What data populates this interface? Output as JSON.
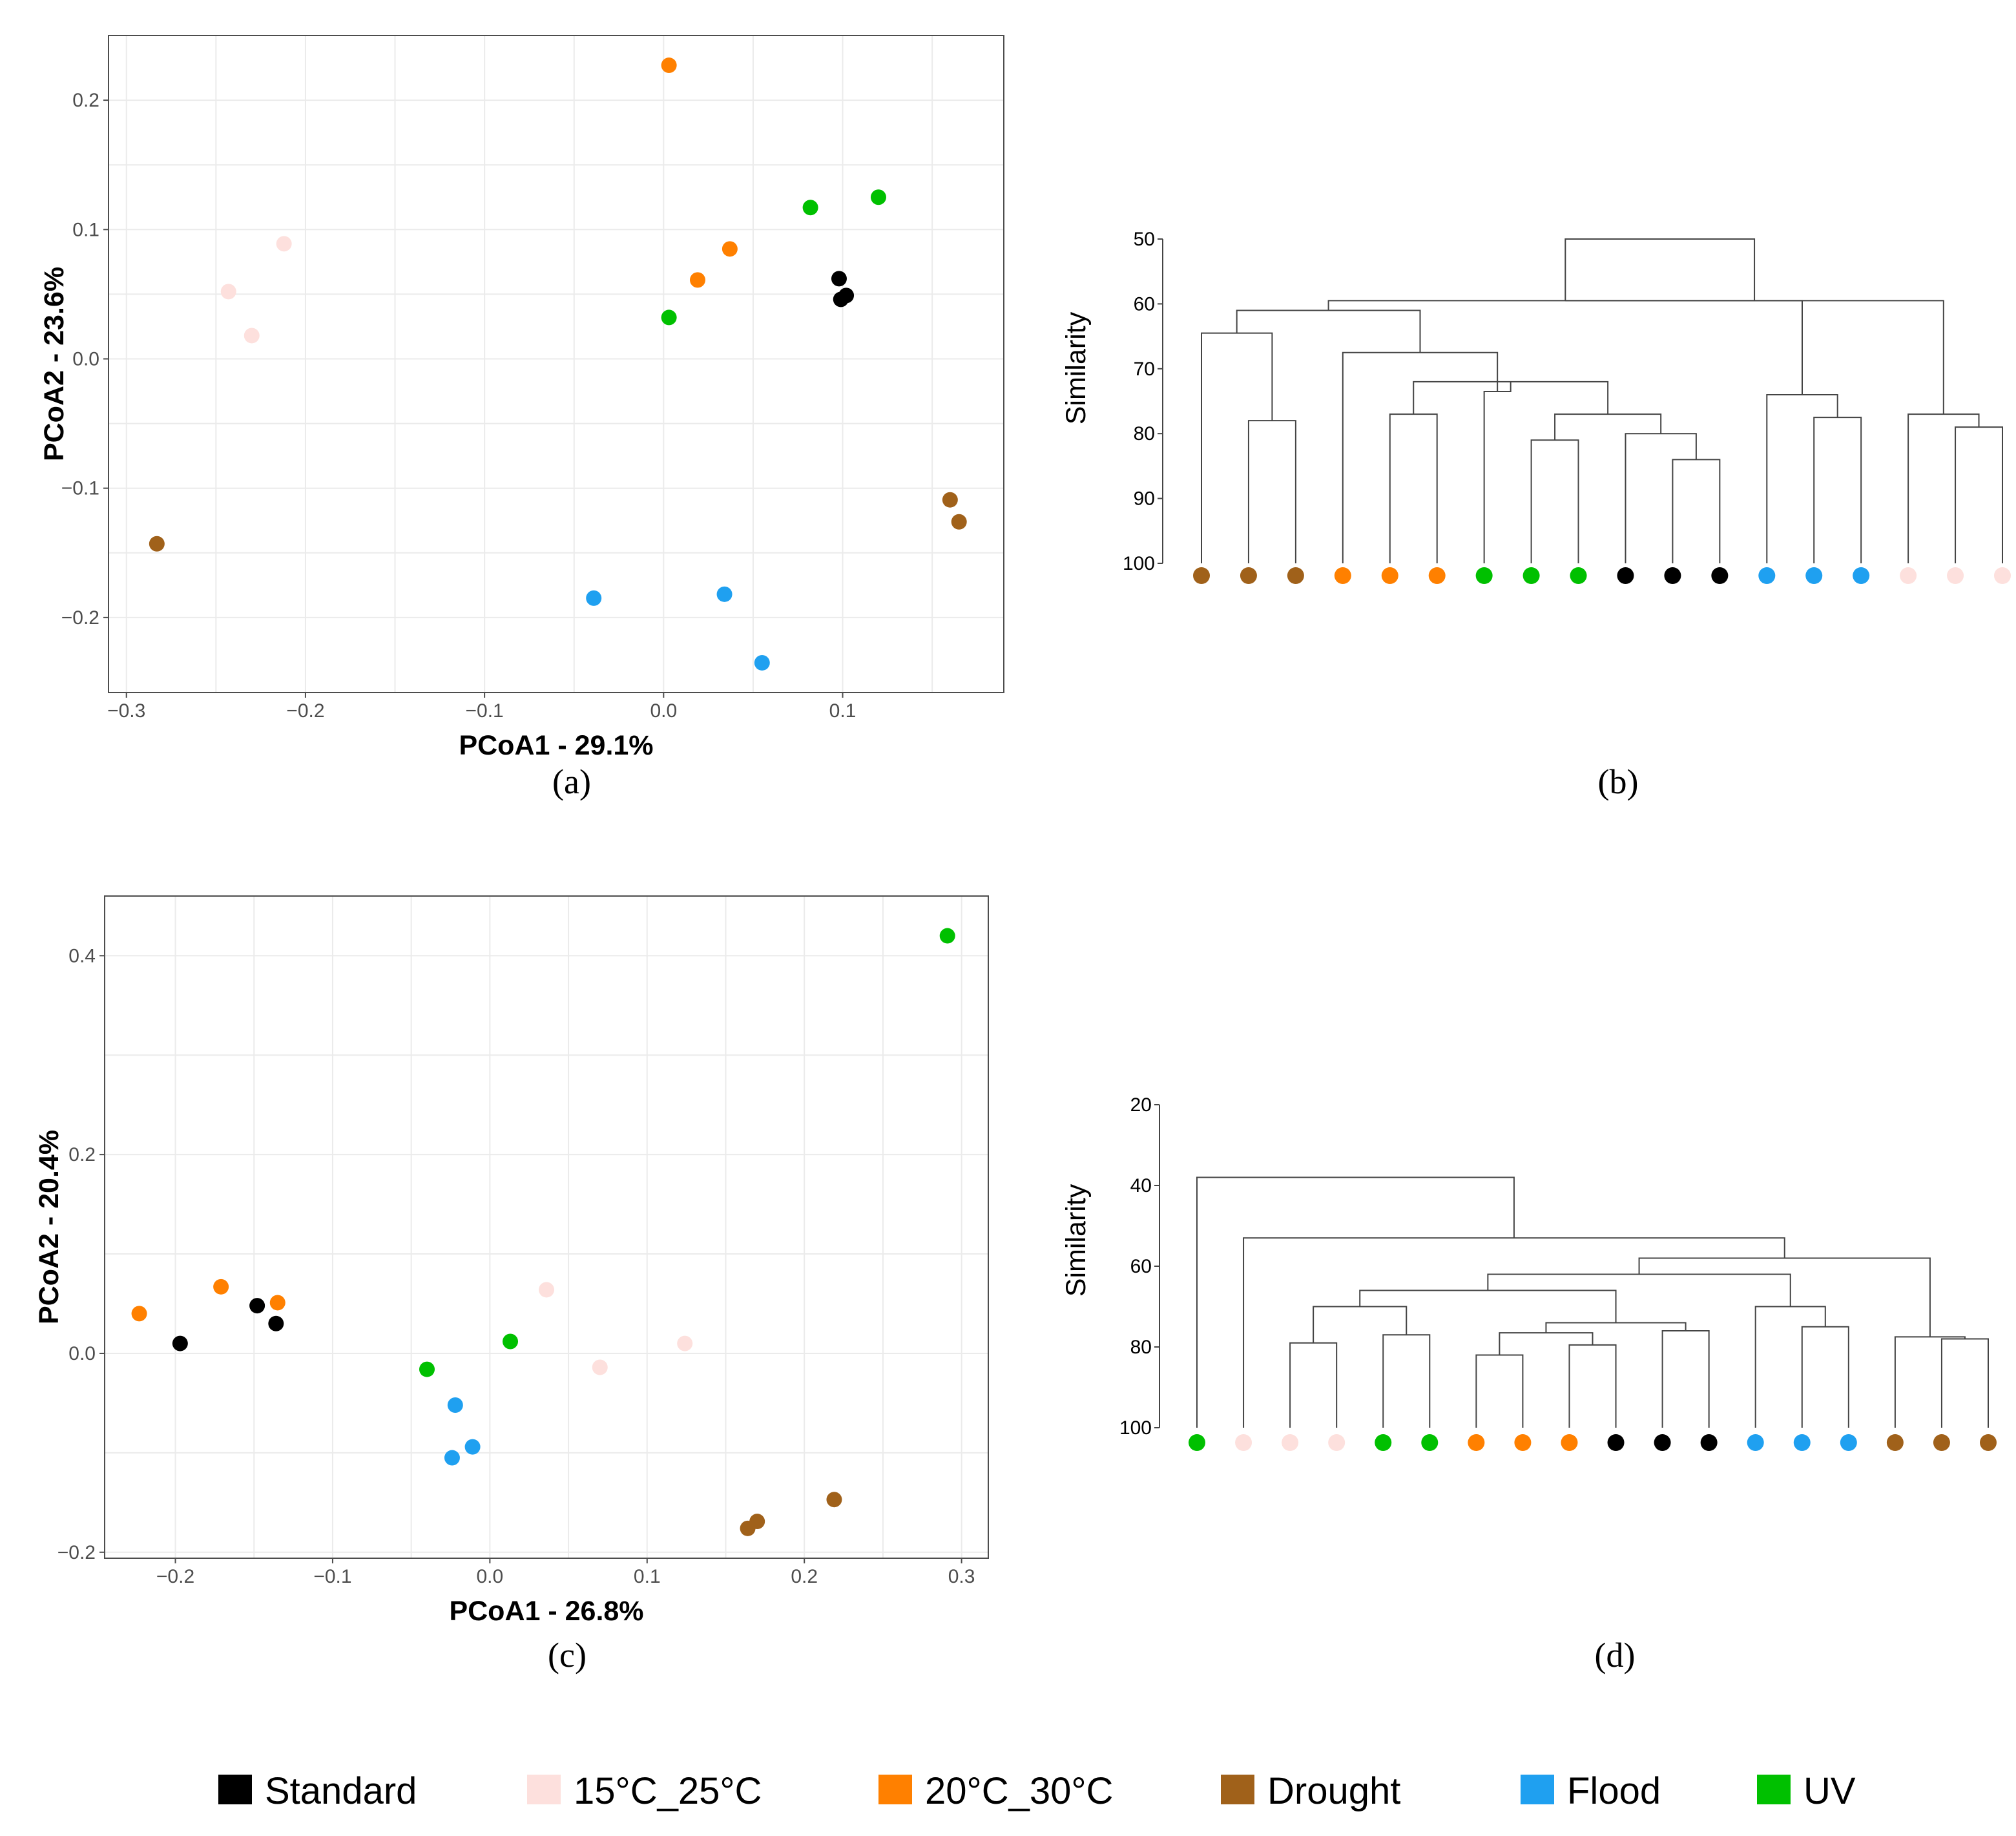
{
  "colors": {
    "Standard": "#000000",
    "15°C_25°C": "#fde0dd",
    "20°C_30°C": "#ff8000",
    "Drought": "#a0611a",
    "Flood": "#1fa0f0",
    "UV": "#00c000"
  },
  "legend": {
    "items": [
      {
        "label": "Standard",
        "group": "Standard"
      },
      {
        "label": "15°C_25°C",
        "group": "15°C_25°C"
      },
      {
        "label": "20°C_30°C",
        "group": "20°C_30°C"
      },
      {
        "label": "Drought",
        "group": "Drought"
      },
      {
        "label": "Flood",
        "group": "Flood"
      },
      {
        "label": "UV",
        "group": "UV"
      }
    ]
  },
  "panels": {
    "a": "(a)",
    "b": "(b)",
    "c": "(c)",
    "d": "(d)"
  },
  "chart_data": [
    {
      "id": "a",
      "type": "scatter",
      "title": "",
      "xlabel": "PCoA1 - 29.1%",
      "ylabel": "PCoA2 - 23.6%",
      "xlim": [
        -0.31,
        0.19
      ],
      "ylim": [
        -0.258,
        0.25
      ],
      "xticks": [
        -0.3,
        -0.2,
        -0.1,
        0.0,
        0.1
      ],
      "xtick_labels": [
        "−0.3",
        "−0.2",
        "−0.1",
        "0.0",
        "0.1"
      ],
      "yticks": [
        -0.2,
        -0.1,
        0.0,
        0.1,
        0.2
      ],
      "ytick_labels": [
        "−0.2",
        "−0.1",
        "0.0",
        "0.1",
        "0.2"
      ],
      "series": [
        {
          "name": "Standard",
          "points": [
            [
              0.098,
              0.062
            ],
            [
              0.102,
              0.049
            ],
            [
              0.099,
              0.046
            ]
          ]
        },
        {
          "name": "15°C_25°C",
          "points": [
            [
              -0.212,
              0.089
            ],
            [
              -0.243,
              0.052
            ],
            [
              -0.23,
              0.018
            ]
          ]
        },
        {
          "name": "20°C_30°C",
          "points": [
            [
              0.003,
              0.227
            ],
            [
              0.037,
              0.085
            ],
            [
              0.019,
              0.061
            ]
          ]
        },
        {
          "name": "Drought",
          "points": [
            [
              -0.283,
              -0.143
            ],
            [
              0.16,
              -0.109
            ],
            [
              0.165,
              -0.126
            ]
          ]
        },
        {
          "name": "Flood",
          "points": [
            [
              -0.039,
              -0.185
            ],
            [
              0.034,
              -0.182
            ],
            [
              0.055,
              -0.235
            ]
          ]
        },
        {
          "name": "UV",
          "points": [
            [
              0.082,
              0.117
            ],
            [
              0.12,
              0.125
            ],
            [
              0.003,
              0.032
            ]
          ]
        }
      ]
    },
    {
      "id": "b",
      "type": "dendrogram",
      "ylabel": "Similarity",
      "ylim": [
        50,
        100
      ],
      "yticks": [
        50,
        60,
        70,
        80,
        90,
        100
      ],
      "leaves": [
        "Drought",
        "Drought",
        "Drought",
        "20°C_30°C",
        "20°C_30°C",
        "20°C_30°C",
        "UV",
        "UV",
        "UV",
        "Standard",
        "Standard",
        "Standard",
        "Flood",
        "Flood",
        "Flood",
        "15°C_25°C",
        "15°C_25°C",
        "15°C_25°C"
      ],
      "merges": [
        {
          "left": 1,
          "right": 2,
          "height": 78
        },
        {
          "left": 10,
          "right": 11,
          "height": 84
        },
        {
          "left": 9,
          "right": 19,
          "height": 80
        },
        {
          "left": 7,
          "right": 8,
          "height": 81
        },
        {
          "left": 21,
          "right": 20,
          "height": 77
        },
        {
          "left": 4,
          "right": 5,
          "height": 77
        },
        {
          "left": 22,
          "right": 23,
          "height": 72
        },
        {
          "left": 24,
          "right": 6,
          "height": 73.5
        },
        {
          "left": 3,
          "right": 25,
          "height": 67.5
        },
        {
          "left": 0,
          "right": 18,
          "height": 64.5
        },
        {
          "left": 13,
          "right": 14,
          "height": 77.5
        },
        {
          "left": 12,
          "right": 28,
          "height": 74
        },
        {
          "left": 16,
          "right": 17,
          "height": 79
        },
        {
          "left": 15,
          "right": 30,
          "height": 77
        },
        {
          "left": 27,
          "right": 26,
          "height": 61
        },
        {
          "left": 32,
          "right": 29,
          "height": 59.5
        },
        {
          "left": 31,
          "right": 33,
          "height": 59.5
        },
        {
          "left": 34,
          "right": 33,
          "height": 50
        }
      ]
    },
    {
      "id": "c",
      "type": "scatter",
      "title": "",
      "xlabel": "PCoA1 - 26.8%",
      "ylabel": "PCoA2 - 20.4%",
      "xlim": [
        -0.245,
        0.317
      ],
      "ylim": [
        -0.206,
        0.46
      ],
      "xticks": [
        -0.2,
        -0.1,
        0.0,
        0.1,
        0.2,
        0.3
      ],
      "xtick_labels": [
        "−0.2",
        "−0.1",
        "0.0",
        "0.1",
        "0.2",
        "0.3"
      ],
      "yticks": [
        -0.2,
        0.0,
        0.2,
        0.4
      ],
      "ytick_labels": [
        "−0.2",
        "0.0",
        "0.2",
        "0.4"
      ],
      "series": [
        {
          "name": "Standard",
          "points": [
            [
              -0.197,
              0.01
            ],
            [
              -0.148,
              0.048
            ],
            [
              -0.136,
              0.03
            ]
          ]
        },
        {
          "name": "15°C_25°C",
          "points": [
            [
              0.036,
              0.064
            ],
            [
              0.07,
              -0.014
            ],
            [
              0.124,
              0.01
            ]
          ]
        },
        {
          "name": "20°C_30°C",
          "points": [
            [
              -0.223,
              0.04
            ],
            [
              -0.171,
              0.067
            ],
            [
              -0.135,
              0.051
            ]
          ]
        },
        {
          "name": "Drought",
          "points": [
            [
              0.219,
              -0.147
            ],
            [
              0.17,
              -0.169
            ],
            [
              0.164,
              -0.176
            ]
          ]
        },
        {
          "name": "Flood",
          "points": [
            [
              -0.022,
              -0.052
            ],
            [
              -0.011,
              -0.094
            ],
            [
              -0.024,
              -0.105
            ]
          ]
        },
        {
          "name": "UV",
          "points": [
            [
              0.291,
              0.42
            ],
            [
              0.013,
              0.012
            ],
            [
              -0.04,
              -0.016
            ]
          ]
        }
      ]
    },
    {
      "id": "d",
      "type": "dendrogram",
      "ylabel": "Similarity",
      "ylim": [
        20,
        100
      ],
      "yticks": [
        20,
        40,
        60,
        80,
        100
      ],
      "leaves": [
        "UV",
        "15°C_25°C",
        "15°C_25°C",
        "15°C_25°C",
        "UV",
        "UV",
        "20°C_30°C",
        "20°C_30°C",
        "20°C_30°C",
        "Standard",
        "Standard",
        "Standard",
        "Flood",
        "Flood",
        "Flood",
        "Drought",
        "Drought",
        "Drought"
      ],
      "merges": [
        {
          "left": 2,
          "right": 3,
          "height": 79
        },
        {
          "left": 4,
          "right": 5,
          "height": 77
        },
        {
          "left": 6,
          "right": 7,
          "height": 82
        },
        {
          "left": 8,
          "right": 9,
          "height": 79.5
        },
        {
          "left": 10,
          "right": 11,
          "height": 76
        },
        {
          "left": 20,
          "right": 21,
          "height": 76.5
        },
        {
          "left": 22,
          "right": 23,
          "height": 74
        },
        {
          "left": 18,
          "right": 19,
          "height": 70
        },
        {
          "left": 25,
          "right": 24,
          "height": 66
        },
        {
          "left": 13,
          "right": 14,
          "height": 75
        },
        {
          "left": 12,
          "right": 27,
          "height": 70
        },
        {
          "left": 16,
          "right": 17,
          "height": 78
        },
        {
          "left": 15,
          "right": 29,
          "height": 77.5
        },
        {
          "left": 26,
          "right": 28,
          "height": 62
        },
        {
          "left": 31,
          "right": 30,
          "height": 58
        },
        {
          "left": 1,
          "right": 32,
          "height": 53
        },
        {
          "left": 0,
          "right": 33,
          "height": 38
        }
      ]
    }
  ]
}
